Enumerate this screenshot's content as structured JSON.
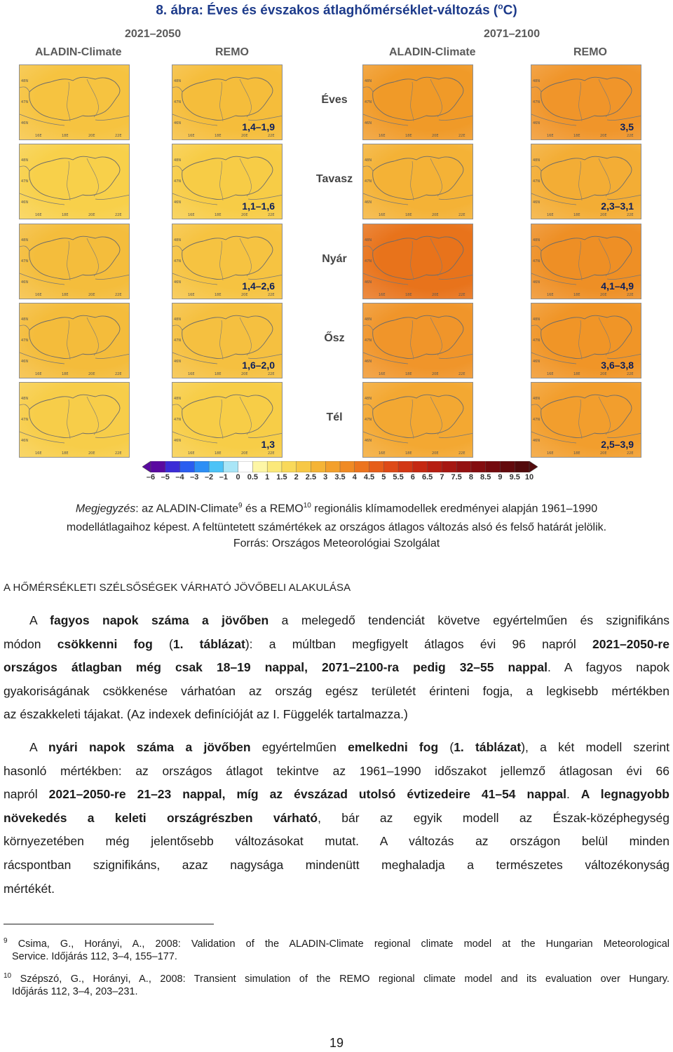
{
  "figure": {
    "title": "8. ábra: Éves és évszakos átlaghőmérséklet-változás (",
    "title_sup": "o",
    "title_end": "C)",
    "periods": [
      "2021–2050",
      "2071–2100"
    ],
    "models": [
      "ALADIN-Climate",
      "REMO",
      "ALADIN-Climate",
      "REMO"
    ],
    "lat_ticks": [
      "48N",
      "47N",
      "46N"
    ],
    "lon_ticks": [
      "16E",
      "18E",
      "20E",
      "22E"
    ],
    "rows": [
      {
        "season": "Éves",
        "value_2021_2050": "1,4–1,9",
        "value_2071_2100": "3,5",
        "colors": [
          "#f6c340",
          "#f5bd3b",
          "#f09a28",
          "#f0952a"
        ]
      },
      {
        "season": "Tavasz",
        "value_2021_2050": "1,1–1,6",
        "value_2071_2100": "2,3–3,1",
        "colors": [
          "#f8d04a",
          "#f7cc46",
          "#f4b236",
          "#f3ad35"
        ]
      },
      {
        "season": "Nyár",
        "value_2021_2050": "1,4–2,6",
        "value_2071_2100": "4,1–4,9",
        "colors": [
          "#f4bd3c",
          "#f6c341",
          "#e8731b",
          "#ee8f25"
        ]
      },
      {
        "season": "Ősz",
        "value_2021_2050": "1,6–2,0",
        "value_2071_2100": "3,6–3,8",
        "colors": [
          "#f4bc3b",
          "#f5c040",
          "#f0952a",
          "#f09527"
        ]
      },
      {
        "season": "Tél",
        "value_2021_2050": "1,3",
        "value_2071_2100": "2,5–3,9",
        "colors": [
          "#f7cd49",
          "#f7cd47",
          "#f3a832",
          "#f29e2d"
        ]
      }
    ],
    "colorbar": {
      "labels": [
        "–6",
        "–5",
        "–4",
        "–3",
        "–2",
        "–1",
        "0",
        "0.5",
        "1",
        "1.5",
        "2",
        "2.5",
        "3",
        "3.5",
        "4",
        "4.5",
        "5",
        "5.5",
        "6",
        "6.5",
        "7",
        "7.5",
        "8",
        "8.5",
        "9",
        "9.5",
        "10"
      ],
      "colors": [
        "#5a0aa0",
        "#3b2bd6",
        "#2a5df0",
        "#2d8ff5",
        "#4cc3f7",
        "#a9e6f7",
        "#ffffff",
        "#fdf6a6",
        "#fbe97a",
        "#f9d95a",
        "#f7c846",
        "#f5b436",
        "#f3a02c",
        "#f08a24",
        "#ec741e",
        "#e65e1a",
        "#de4a17",
        "#d23714",
        "#c52812",
        "#b61e12",
        "#a61712",
        "#941111",
        "#840d10",
        "#740a0e",
        "#630a0d",
        "#520a0c"
      ]
    }
  },
  "note": {
    "label": "Megjegyzés",
    "text_a": ": az ALADIN-Climate",
    "sup_a": "9",
    "text_b": " és a REMO",
    "sup_b": "10",
    "text_c": " regionális klímamodellek eredményei alapján 1961–1990",
    "line2": "modellátlagaihoz képest. A feltüntetett számértékek az országos átlagos változás alsó és felső határát jelölik.",
    "source": "Forrás: Országos Meteorológiai Szolgálat"
  },
  "section_heading": "A HŐMÉRSÉKLETI SZÉLSŐSÉGEK VÁRHATÓ JÖVŐBELI ALAKULÁSA",
  "para1": {
    "l1a": "A ",
    "l1b": "fagyos napok száma a jövőben",
    "l1c": " a melegedő tendenciát követve egyértelműen és szignifikáns",
    "l2a": "módon ",
    "l2b": "csökkenni fog",
    "l2c": " (",
    "l2d": "1. táblázat",
    "l2e": "): a múltban megfigyelt átlagos évi 96 napról ",
    "l2f": "2021–2050-re",
    "l3a": "országos átlagban még csak 18–19 nappal, 2071–2100-ra pedig 32–55 nappal",
    "l3b": ". A fagyos napok",
    "l4": "gyakoriságának csökkenése várhatóan az ország egész területét érinteni fogja, a legkisebb mértékben",
    "l5": "az északkeleti tájakat. (Az indexek definícióját az I. Függelék tartalmazza.)"
  },
  "para2": {
    "l1a": "A ",
    "l1b": "nyári napok száma a jövőben",
    "l1c": " egyértelműen ",
    "l1d": "emelkedni fog",
    "l1e": " (",
    "l1f": "1. táblázat",
    "l1g": "), a két modell szerint",
    "l2": "hasonló mértékben: az országos átlagot tekintve az 1961–1990 időszakot jellemző átlagosan évi 66",
    "l3a": "napról ",
    "l3b": "2021–2050-re 21–23 nappal, míg az évszázad utolsó évtizedeire 41–54 nappal",
    "l3c": ". ",
    "l3d": "A legnagyobb",
    "l4a": "növekedés a keleti országrészben várható",
    "l4b": ", bár az egyik modell az Észak-középhegység",
    "l5": "környezetében még jelentősebb változásokat mutat. A változás az országon belül minden",
    "l6": "rácspontban szignifikáns, azaz nagysága mindenütt meghaladja a természetes változékonyság",
    "l7": "mértékét."
  },
  "footnotes": [
    {
      "num": "9",
      "l1": "Csima, G., Horányi, A., 2008: Validation of the ALADIN-Climate regional climate model at the Hungarian Meteorological",
      "l2": "Service. Időjárás 112, 3–4, 155–177."
    },
    {
      "num": "10",
      "l1": "Szépszó, G., Horányi, A., 2008: Transient simulation of the REMO regional climate model and its evaluation over Hungary.",
      "l2": "Időjárás 112, 3–4, 203–231."
    }
  ],
  "page_number": "19"
}
